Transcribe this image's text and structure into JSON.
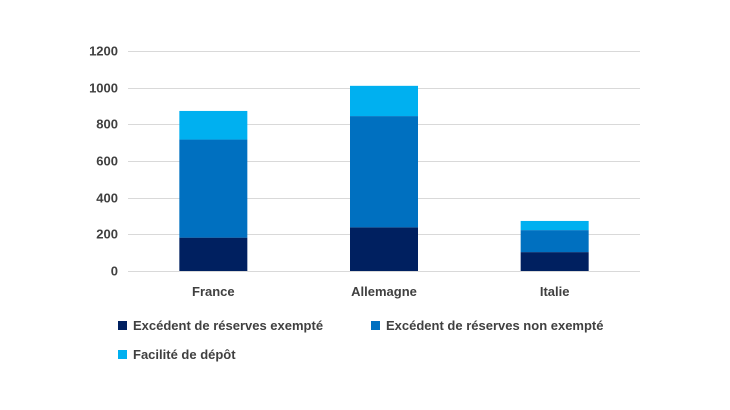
{
  "chart_data": {
    "type": "bar",
    "stacked": true,
    "categories": [
      "France",
      "Allemagne",
      "Italie"
    ],
    "series": [
      {
        "name": "Excédent de réserves exempté",
        "color": "#002060",
        "values": [
          182,
          238,
          103
        ]
      },
      {
        "name": "Excédent de réserves non exempté",
        "color": "#0070C0",
        "values": [
          535,
          607,
          120
        ]
      },
      {
        "name": "Facilité de dépôt",
        "color": "#00B0F0",
        "values": [
          156,
          165,
          50
        ]
      }
    ],
    "ylim": [
      0,
      1200
    ],
    "yticks": [
      0,
      200,
      400,
      600,
      800,
      1000,
      1200
    ],
    "grid": true,
    "legend_position": "bottom",
    "title": "",
    "xlabel": "",
    "ylabel": ""
  }
}
